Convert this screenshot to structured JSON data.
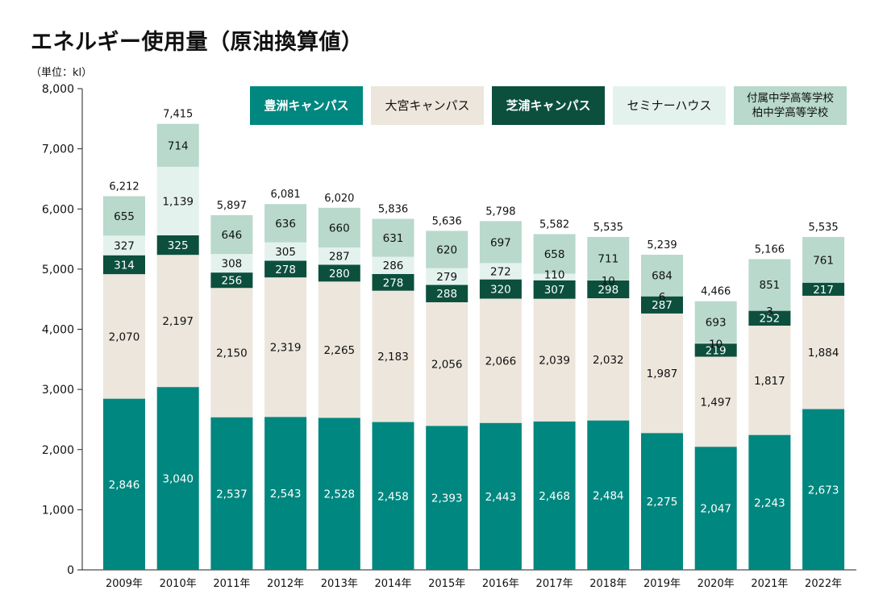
{
  "title": "エネルギー使用量（原油換算値）",
  "unit_label": "（単位：kl）",
  "chart_data": {
    "type": "bar",
    "stacked": true,
    "title": "エネルギー使用量（原油換算値）",
    "ylabel": "（単位：kl）",
    "ylim": [
      0,
      8000
    ],
    "yticks": [
      "0",
      "1,000",
      "2,000",
      "3,000",
      "4,000",
      "5,000",
      "6,000",
      "7,000",
      "8,000"
    ],
    "categories": [
      "2009年",
      "2010年",
      "2011年",
      "2012年",
      "2013年",
      "2014年",
      "2015年",
      "2016年",
      "2017年",
      "2018年",
      "2019年",
      "2020年",
      "2021年",
      "2022年"
    ],
    "series": [
      {
        "name": "豊洲キャンパス",
        "color": "#00877f",
        "text_color": "#ffffff",
        "values": [
          2846,
          3040,
          2537,
          2543,
          2528,
          2458,
          2393,
          2443,
          2468,
          2484,
          2275,
          2047,
          2243,
          2673
        ],
        "labels": [
          "2,846",
          "3,040",
          "2,537",
          "2,543",
          "2,528",
          "2,458",
          "2,393",
          "2,443",
          "2,468",
          "2,484",
          "2,275",
          "2,047",
          "2,243",
          "2,673"
        ]
      },
      {
        "name": "大宮キャンパス",
        "color": "#ece6dc",
        "text_color": "#111111",
        "values": [
          2070,
          2197,
          2150,
          2319,
          2265,
          2183,
          2056,
          2066,
          2039,
          2032,
          1987,
          1497,
          1817,
          1884
        ],
        "labels": [
          "2,070",
          "2,197",
          "2,150",
          "2,319",
          "2,265",
          "2,183",
          "2,056",
          "2,066",
          "2,039",
          "2,032",
          "1,987",
          "1,497",
          "1,817",
          "1,884"
        ]
      },
      {
        "name": "芝浦キャンパス",
        "color": "#0c4f3d",
        "text_color": "#ffffff",
        "values": [
          314,
          325,
          256,
          278,
          280,
          278,
          288,
          320,
          307,
          298,
          287,
          219,
          252,
          217
        ],
        "labels": [
          "314",
          "325",
          "256",
          "278",
          "280",
          "278",
          "288",
          "320",
          "307",
          "298",
          "287",
          "219",
          "252",
          "217"
        ]
      },
      {
        "name": "セミナーハウス",
        "color": "#e4f2ee",
        "text_color": "#111111",
        "values": [
          327,
          1139,
          308,
          305,
          287,
          286,
          279,
          272,
          110,
          10,
          6,
          10,
          3,
          0
        ],
        "labels": [
          "327",
          "1,139",
          "308",
          "305",
          "287",
          "286",
          "279",
          "272",
          "110",
          "10",
          "6",
          "10",
          "3",
          ""
        ]
      },
      {
        "name": "付属中学高等学校\n柏中学高等学校",
        "color": "#b8d9cc",
        "text_color": "#111111",
        "values": [
          655,
          714,
          646,
          636,
          660,
          631,
          620,
          697,
          658,
          711,
          684,
          693,
          851,
          761
        ],
        "labels": [
          "655",
          "714",
          "646",
          "636",
          "660",
          "631",
          "620",
          "697",
          "658",
          "711",
          "684",
          "693",
          "851",
          "761"
        ]
      }
    ],
    "totals": [
      "6,212",
      "7,415",
      "5,897",
      "6,081",
      "6,020",
      "5,836",
      "5,636",
      "5,798",
      "5,582",
      "5,535",
      "5,239",
      "4,466",
      "5,166",
      "5,535"
    ],
    "legend": {
      "position": "top-right",
      "items": [
        {
          "label": "豊洲キャンパス",
          "bg": "#00877f",
          "fg": "#ffffff"
        },
        {
          "label": "大宮キャンパス",
          "bg": "#ece6dc",
          "fg": "#111111"
        },
        {
          "label": "芝浦キャンパス",
          "bg": "#0c4f3d",
          "fg": "#ffffff"
        },
        {
          "label": "セミナーハウス",
          "bg": "#e4f2ee",
          "fg": "#111111"
        },
        {
          "label": "付属中学高等学校\n柏中学高等学校",
          "bg": "#b8d9cc",
          "fg": "#111111"
        }
      ]
    }
  }
}
